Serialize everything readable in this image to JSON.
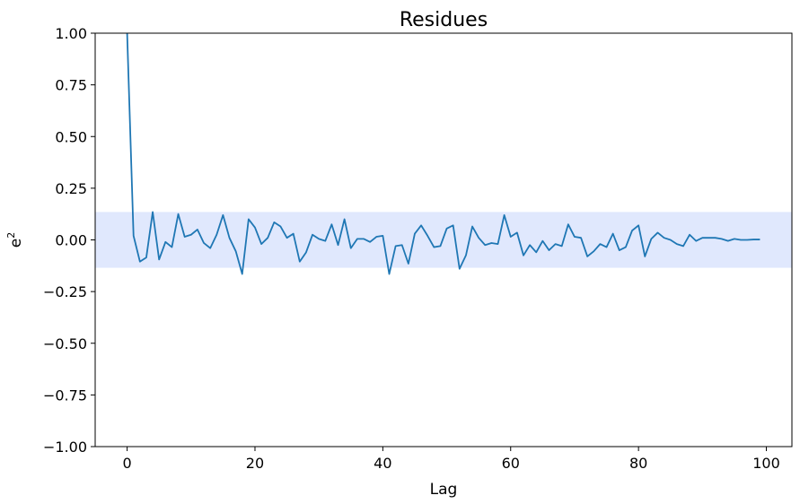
{
  "chart_data": {
    "type": "line",
    "title": "Residues",
    "xlabel": "Lag",
    "ylabel_base": "e",
    "ylabel_sup": "2",
    "xlim": [
      -5,
      104
    ],
    "ylim": [
      -1.0,
      1.0
    ],
    "xticks": [
      0,
      20,
      40,
      60,
      80,
      100
    ],
    "xtick_labels": [
      "0",
      "20",
      "40",
      "60",
      "80",
      "100"
    ],
    "yticks": [
      1.0,
      0.75,
      0.5,
      0.25,
      0.0,
      -0.25,
      -0.5,
      -0.75,
      -1.0
    ],
    "ytick_labels": [
      "1.00",
      "0.75",
      "0.50",
      "0.25",
      "0.00",
      "−0.25",
      "−0.50",
      "−0.75",
      "−1.00"
    ],
    "confidence_band": [
      -0.135,
      0.135
    ],
    "grid": false,
    "colors": {
      "line": "#1f77b4",
      "band": "#e0e8fd"
    },
    "series": [
      {
        "x": [
          0,
          1,
          2,
          3,
          4,
          5,
          6,
          7,
          8,
          9,
          10,
          11,
          12,
          13,
          14,
          15,
          16,
          17,
          18,
          19,
          20,
          21,
          22,
          23,
          24,
          25,
          26,
          27,
          28,
          29,
          30,
          31,
          32,
          33,
          34,
          35,
          36,
          37,
          38,
          39,
          40,
          41,
          42,
          43,
          44,
          45,
          46,
          47,
          48,
          49,
          50,
          51,
          52,
          53,
          54,
          55,
          56,
          57,
          58,
          59,
          60,
          61,
          62,
          63,
          64,
          65,
          66,
          67,
          68,
          69,
          70,
          71,
          72,
          73,
          74,
          75,
          76,
          77,
          78,
          79,
          80,
          81,
          82,
          83,
          84,
          85,
          86,
          87,
          88,
          89,
          90,
          91,
          92,
          93,
          94,
          95,
          96,
          97,
          98,
          99
        ],
        "values": [
          1.0,
          0.02,
          -0.105,
          -0.085,
          0.135,
          -0.095,
          -0.01,
          -0.035,
          0.125,
          0.015,
          0.025,
          0.05,
          -0.015,
          -0.04,
          0.025,
          0.12,
          0.01,
          -0.055,
          -0.165,
          0.1,
          0.06,
          -0.02,
          0.01,
          0.085,
          0.065,
          0.01,
          0.03,
          -0.105,
          -0.06,
          0.025,
          0.005,
          -0.005,
          0.075,
          -0.025,
          0.1,
          -0.04,
          0.005,
          0.005,
          -0.01,
          0.015,
          0.02,
          -0.165,
          -0.03,
          -0.025,
          -0.115,
          0.03,
          0.07,
          0.02,
          -0.035,
          -0.03,
          0.055,
          0.07,
          -0.14,
          -0.075,
          0.065,
          0.01,
          -0.025,
          -0.015,
          -0.02,
          0.12,
          0.015,
          0.035,
          -0.075,
          -0.025,
          -0.06,
          -0.005,
          -0.05,
          -0.02,
          -0.03,
          0.075,
          0.015,
          0.01,
          -0.08,
          -0.055,
          -0.02,
          -0.035,
          0.03,
          -0.05,
          -0.035,
          0.045,
          0.07,
          -0.08,
          0.005,
          0.035,
          0.01,
          0.0,
          -0.02,
          -0.03,
          0.025,
          -0.005,
          0.01,
          0.01,
          0.01,
          0.005,
          -0.005,
          0.005,
          0.0,
          0.0,
          0.002,
          0.002
        ]
      }
    ]
  }
}
